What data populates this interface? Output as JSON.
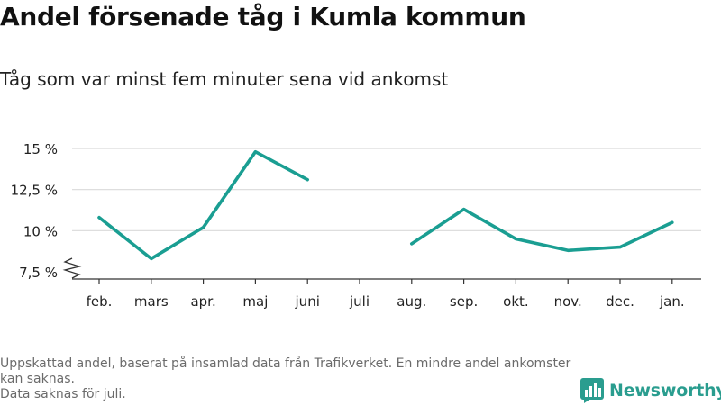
{
  "header": {
    "title": "Andel försenade tåg i Kumla kommun",
    "subtitle": "Tåg som var minst fem minuter sena vid ankomst"
  },
  "footnote": {
    "line1": "Uppskattad andel, baserat på insamlad data från Trafikverket. En mindre andel ankomster kan saknas.",
    "line2": "Data saknas för juli."
  },
  "brand": {
    "name": "Newsworthy",
    "color": "#2a9d8f",
    "icon": "bar-chart-logo-icon"
  },
  "chart_data": {
    "type": "line",
    "title": "Andel försenade tåg i Kumla kommun",
    "subtitle": "Tåg som var minst fem minuter sena vid ankomst",
    "categories": [
      "feb.",
      "mars",
      "apr.",
      "maj",
      "juni",
      "juli",
      "aug.",
      "sep.",
      "okt.",
      "nov.",
      "dec.",
      "jan."
    ],
    "series": [
      {
        "color": "#1a9e92",
        "values": [
          10.8,
          8.3,
          10.2,
          14.8,
          13.1,
          null,
          9.2,
          11.3,
          9.5,
          8.8,
          9.0,
          10.5
        ]
      }
    ],
    "yticks": [
      7.5,
      10,
      12.5,
      15
    ],
    "ytick_labels": [
      "7,5 %",
      "10 %",
      "12,5 %",
      "15 %"
    ],
    "ylim": [
      7.5,
      15
    ],
    "axis_break": true,
    "grid": true,
    "xlabel": "",
    "ylabel": ""
  }
}
